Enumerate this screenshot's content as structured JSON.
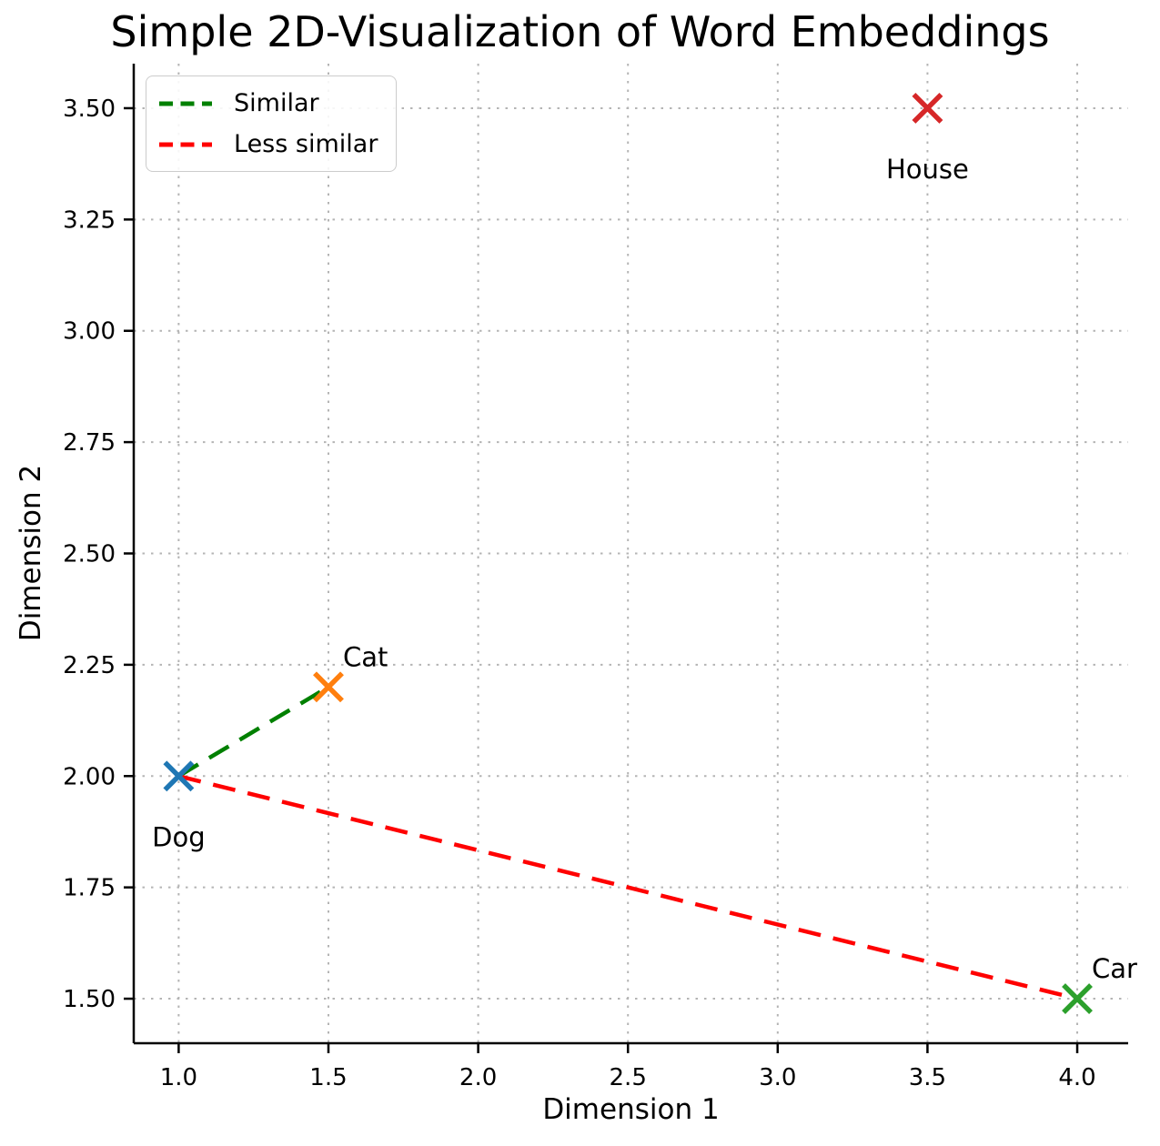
{
  "chart_data": {
    "type": "scatter",
    "title": "Simple 2D-Visualization of Word Embeddings",
    "xlabel": "Dimension 1",
    "ylabel": "Dimension 2",
    "xlim": [
      0.85,
      4.17
    ],
    "ylim": [
      1.4,
      3.6
    ],
    "x_ticks": [
      1.0,
      1.5,
      2.0,
      2.5,
      3.0,
      3.5,
      4.0
    ],
    "x_tick_labels": [
      "1.0",
      "1.5",
      "2.0",
      "2.5",
      "3.0",
      "3.5",
      "4.0"
    ],
    "y_ticks": [
      1.5,
      1.75,
      2.0,
      2.25,
      2.5,
      2.75,
      3.0,
      3.25,
      3.5
    ],
    "y_tick_labels": [
      "1.50",
      "1.75",
      "2.00",
      "2.25",
      "2.50",
      "2.75",
      "3.00",
      "3.25",
      "3.50"
    ],
    "grid": "dotted",
    "grid_color": "#b4b4b4",
    "spine_color": "#000000",
    "points": [
      {
        "label": "Dog",
        "x": 1.0,
        "y": 2.0,
        "color": "#1f77b4",
        "label_anchor": "below"
      },
      {
        "label": "Cat",
        "x": 1.5,
        "y": 2.2,
        "color": "#ff7f0e",
        "label_anchor": "above-right"
      },
      {
        "label": "House",
        "x": 3.5,
        "y": 3.5,
        "color": "#d62728",
        "label_anchor": "below"
      },
      {
        "label": "Car",
        "x": 4.0,
        "y": 1.5,
        "color": "#2ca02c",
        "label_anchor": "above-right"
      }
    ],
    "lines": [
      {
        "name": "Similar",
        "from": "Dog",
        "to": "Cat",
        "color": "#008000",
        "style": "dashed"
      },
      {
        "name": "Less similar",
        "from": "Dog",
        "to": "Car",
        "color": "#ff0000",
        "style": "dashed"
      }
    ],
    "legend": {
      "position": "upper-left",
      "entries": [
        {
          "label": "Similar",
          "color": "#008000",
          "style": "dashed"
        },
        {
          "label": "Less similar",
          "color": "#ff0000",
          "style": "dashed"
        }
      ]
    }
  }
}
